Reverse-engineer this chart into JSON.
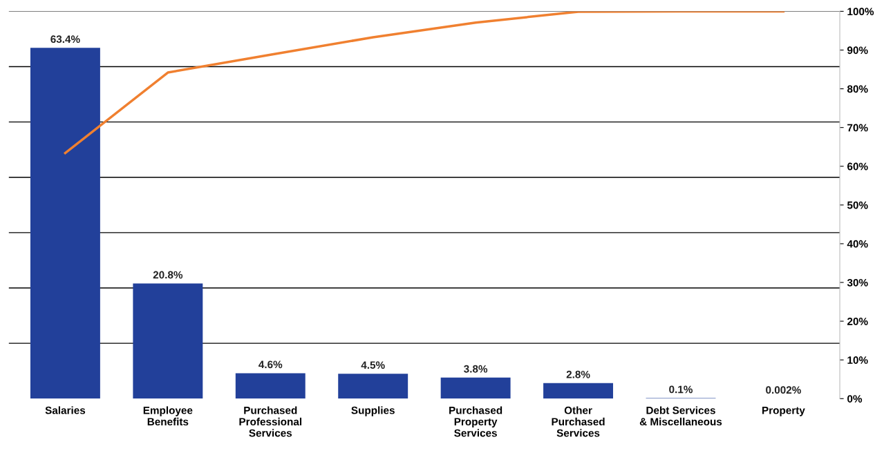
{
  "chart_data": {
    "type": "bar",
    "categories": [
      "Salaries",
      "Employee\nBenefits",
      "Purchased\nProfessional\nServices",
      "Supplies",
      "Purchased\nProperty\nServices",
      "Other\nPurchased\nServices",
      "Debt Services\n& Miscellaneous",
      "Property"
    ],
    "series": [
      {
        "color": "#22409a",
        "values": [
          63.4,
          20.8,
          4.6,
          4.5,
          3.8,
          2.8,
          0.1,
          0.002
        ],
        "value_labels": [
          "63.4%",
          "20.8%",
          "4.6%",
          "4.5%",
          "3.8%",
          "2.8%",
          "0.1%",
          "0.002%"
        ]
      },
      {
        "type": "line",
        "axis": "y2",
        "color": "#f08030",
        "values": [
          63.4,
          84.2,
          88.8,
          93.3,
          97.1,
          99.9,
          100,
          100
        ]
      }
    ],
    "ylim": [
      0,
      70
    ],
    "yticks": [
      {
        "value": 10,
        "label": null
      },
      {
        "value": 20,
        "label": null
      },
      {
        "value": 30,
        "label": null
      },
      {
        "value": 40,
        "label": null
      },
      {
        "value": 50,
        "label": null
      },
      {
        "value": 60,
        "label": null
      },
      {
        "value": 70,
        "label": null
      }
    ],
    "y2lim": [
      0,
      100
    ],
    "y2ticks": [
      {
        "value": 0,
        "label": "0%"
      },
      {
        "value": 10,
        "label": "10%"
      },
      {
        "value": 20,
        "label": "20%"
      },
      {
        "value": 30,
        "label": "30%"
      },
      {
        "value": 40,
        "label": "40%"
      },
      {
        "value": 50,
        "label": "50%"
      },
      {
        "value": 60,
        "label": "60%"
      },
      {
        "value": 70,
        "label": "70%"
      },
      {
        "value": 80,
        "label": "80%"
      },
      {
        "value": 90,
        "label": "90%"
      },
      {
        "value": 100,
        "label": "100%"
      }
    ],
    "grid": "y",
    "marker": "none",
    "line_style": "solid"
  }
}
